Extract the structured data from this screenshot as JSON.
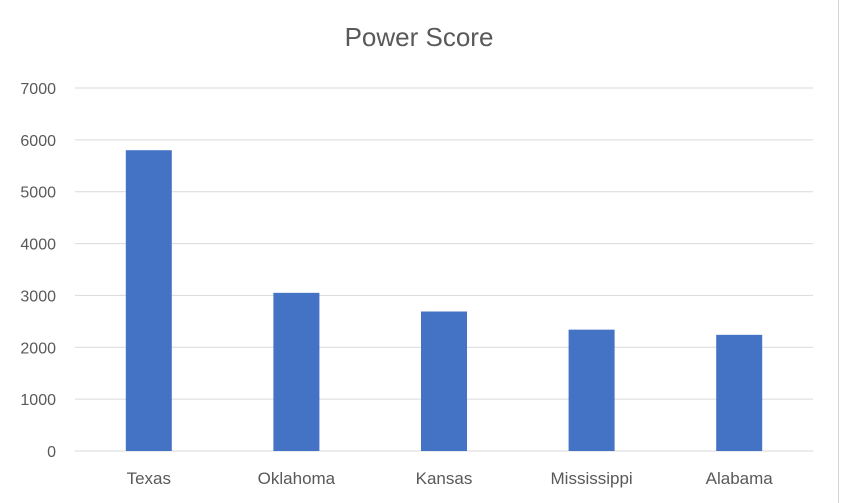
{
  "chart_data": {
    "type": "bar",
    "title": "Power Score",
    "xlabel": "",
    "ylabel": "",
    "categories": [
      "Texas",
      "Oklahoma",
      "Kansas",
      "Mississippi",
      "Alabama"
    ],
    "values": [
      5800,
      3050,
      2690,
      2340,
      2240
    ],
    "ylim": [
      0,
      7000
    ],
    "yticks": [
      0,
      1000,
      2000,
      3000,
      4000,
      5000,
      6000,
      7000
    ],
    "grid": true,
    "legend": "none",
    "colors": {
      "bar": "#4472c4",
      "grid": "#d9d9d9",
      "text": "#595959"
    }
  }
}
